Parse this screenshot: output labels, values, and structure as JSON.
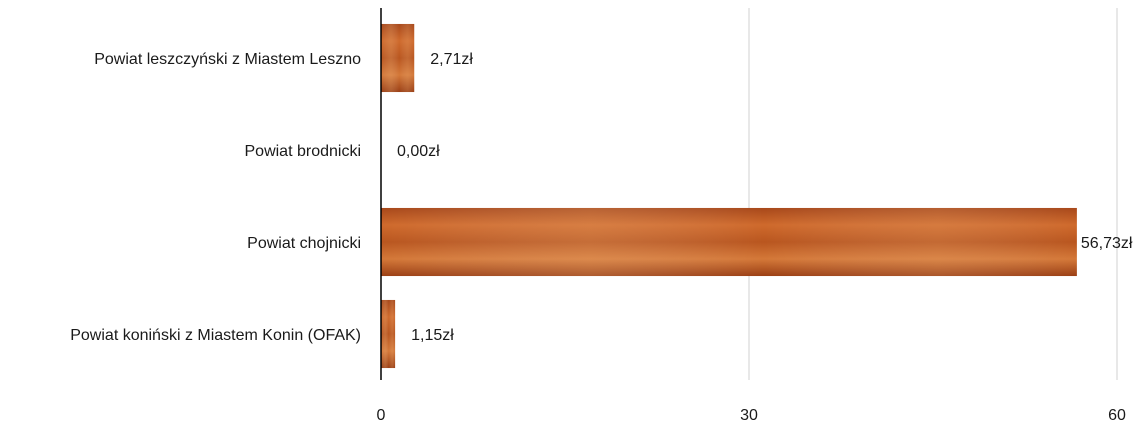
{
  "chart_data": {
    "type": "bar",
    "orientation": "horizontal",
    "categories": [
      "Powiat leszczyński z Miastem Leszno",
      "Powiat brodnicki",
      "Powiat chojnicki",
      "Powiat koniński z Miastem Konin (OFAK)"
    ],
    "values": [
      2.71,
      0.0,
      56.73,
      1.15
    ],
    "value_labels": [
      "2,71zł",
      "0,00zł",
      "56,73zł",
      "1,15zł"
    ],
    "x_ticks": [
      0,
      30,
      60
    ],
    "x_tick_labels": [
      "0",
      "30",
      "60"
    ],
    "xlim": [
      0,
      60
    ],
    "title": "",
    "xlabel": "",
    "ylabel": "",
    "grid": "vertical",
    "legend": "none",
    "colors": {
      "bar_dark": "#8e3a10",
      "bar_mid": "#c05a22",
      "bar_light": "#d9823f",
      "grid": "#d0d0d0",
      "axis": "#000000"
    }
  }
}
